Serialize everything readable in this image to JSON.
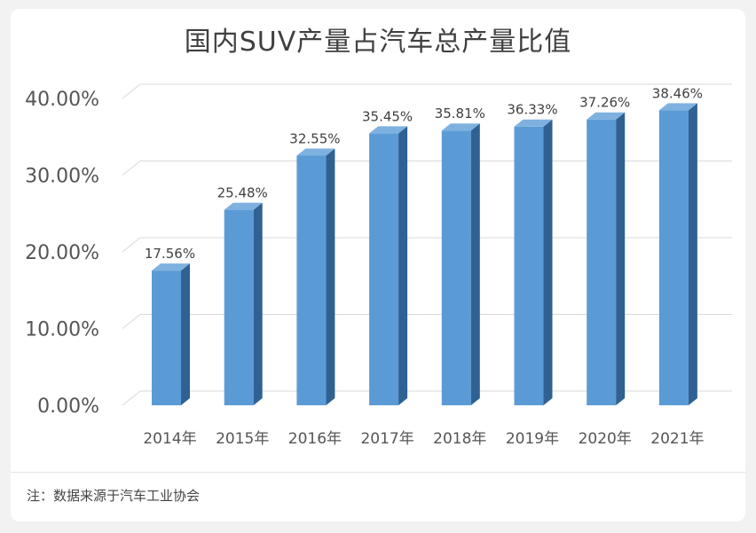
{
  "chart_data": {
    "type": "bar",
    "title": "国内SUV产量占汽车总产量比值",
    "categories": [
      "2014年",
      "2015年",
      "2016年",
      "2017年",
      "2018年",
      "2019年",
      "2020年",
      "2021年"
    ],
    "values": [
      17.56,
      25.48,
      32.55,
      35.45,
      35.81,
      36.33,
      37.26,
      38.46
    ],
    "data_labels": [
      "17.56%",
      "25.48%",
      "32.55%",
      "35.45%",
      "35.81%",
      "36.33%",
      "37.26%",
      "38.46%"
    ],
    "ylim": [
      0,
      40
    ],
    "yticks": [
      0,
      10,
      20,
      30,
      40
    ],
    "ytick_labels": [
      "0.00%",
      "10.00%",
      "20.00%",
      "30.00%",
      "40.00%"
    ],
    "xlabel": "",
    "ylabel": "",
    "grid": true,
    "legend": "none",
    "bar_color": "#5b9bd5"
  },
  "source_note": "注：数据来源于汽车工业协会"
}
